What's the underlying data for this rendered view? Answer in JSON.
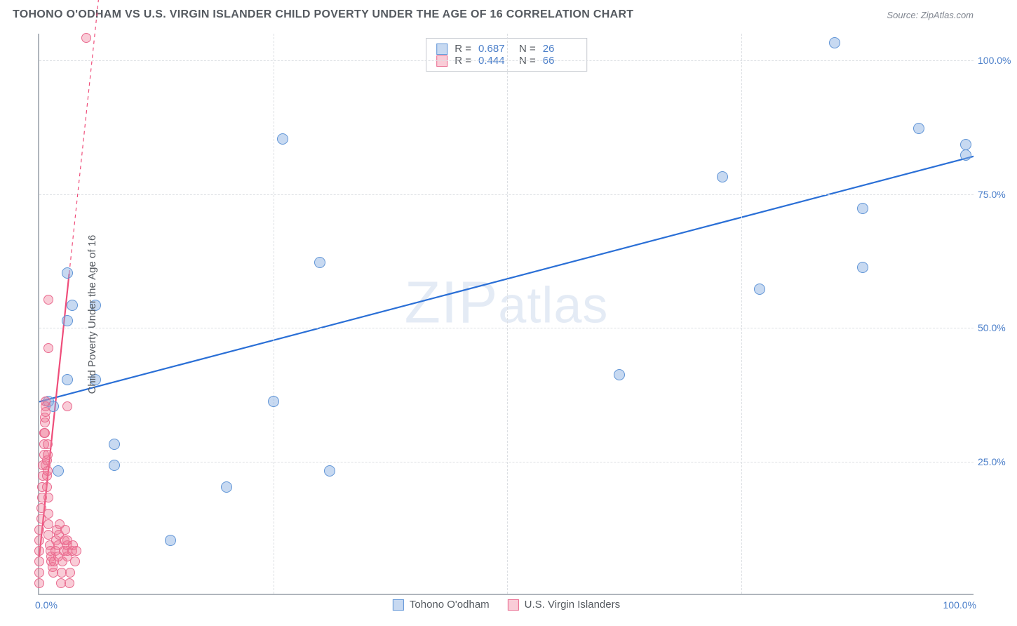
{
  "header": {
    "title": "TOHONO O'ODHAM VS U.S. VIRGIN ISLANDER CHILD POVERTY UNDER THE AGE OF 16 CORRELATION CHART",
    "source": "Source: ZipAtlas.com"
  },
  "chart": {
    "type": "scatter",
    "ylabel": "Child Poverty Under the Age of 16",
    "xlim": [
      0,
      100
    ],
    "ylim": [
      0,
      105
    ],
    "x_ticks": {
      "min_label": "0.0%",
      "max_label": "100.0%"
    },
    "y_ticks": [
      {
        "value": 25,
        "label": "25.0%"
      },
      {
        "value": 50,
        "label": "50.0%"
      },
      {
        "value": 75,
        "label": "75.0%"
      },
      {
        "value": 100,
        "label": "100.0%"
      }
    ],
    "x_gridlines": [
      25,
      50,
      75
    ],
    "background_color": "#ffffff",
    "grid_color": "#dcdfe3",
    "axis_color": "#b0b6bd",
    "series": [
      {
        "name": "Tohono O'odham",
        "color_fill": "rgba(130,170,225,0.45)",
        "color_stroke": "#5f94d6",
        "marker_radius": 8,
        "trend": {
          "x1": 0,
          "y1": 36,
          "x2": 100,
          "y2": 82,
          "dash_x1": 100,
          "dash_y1": 82,
          "dash_x2": 100,
          "dash_y2": 82,
          "color": "#2a6fd6",
          "width": 2.2
        },
        "points": [
          [
            1,
            36
          ],
          [
            1.5,
            35
          ],
          [
            2,
            23
          ],
          [
            3,
            40
          ],
          [
            3,
            51
          ],
          [
            3.5,
            54
          ],
          [
            3,
            60
          ],
          [
            6,
            40
          ],
          [
            6,
            54
          ],
          [
            8,
            28
          ],
          [
            8,
            24
          ],
          [
            14,
            10
          ],
          [
            20,
            20
          ],
          [
            25,
            36
          ],
          [
            26,
            85
          ],
          [
            30,
            62
          ],
          [
            31,
            23
          ],
          [
            62,
            41
          ],
          [
            73,
            78
          ],
          [
            77,
            57
          ],
          [
            85,
            103
          ],
          [
            88,
            61
          ],
          [
            88,
            72
          ],
          [
            94,
            87
          ],
          [
            99,
            84
          ],
          [
            99,
            82
          ]
        ]
      },
      {
        "name": "U.S. Virgin Islanders",
        "color_fill": "rgba(240,120,150,0.38)",
        "color_stroke": "#e96a8f",
        "marker_radius": 7,
        "trend": {
          "x1": 0,
          "y1": 7,
          "x2": 3.2,
          "y2": 60,
          "dash_x1": 3.2,
          "dash_y1": 60,
          "dash_x2": 9,
          "dash_y2": 155,
          "color": "#ef4d7a",
          "width": 2.2
        },
        "points": [
          [
            0,
            2
          ],
          [
            0,
            4
          ],
          [
            0,
            6
          ],
          [
            0,
            8
          ],
          [
            0,
            10
          ],
          [
            0,
            12
          ],
          [
            0.2,
            14
          ],
          [
            0.2,
            16
          ],
          [
            0.3,
            18
          ],
          [
            0.3,
            20
          ],
          [
            0.4,
            22
          ],
          [
            0.4,
            24
          ],
          [
            0.5,
            26
          ],
          [
            0.5,
            28
          ],
          [
            0.5,
            30
          ],
          [
            0.6,
            30
          ],
          [
            0.6,
            32
          ],
          [
            0.6,
            33
          ],
          [
            0.7,
            34
          ],
          [
            0.7,
            35
          ],
          [
            0.7,
            36
          ],
          [
            0.7,
            24
          ],
          [
            0.8,
            25
          ],
          [
            0.8,
            20
          ],
          [
            0.8,
            22
          ],
          [
            0.9,
            23
          ],
          [
            0.9,
            26
          ],
          [
            0.9,
            28
          ],
          [
            1,
            18
          ],
          [
            1,
            15
          ],
          [
            1,
            13
          ],
          [
            1,
            11
          ],
          [
            1.1,
            9
          ],
          [
            1.2,
            8
          ],
          [
            1.3,
            7
          ],
          [
            1.3,
            6
          ],
          [
            1.4,
            5
          ],
          [
            1.5,
            4
          ],
          [
            1.6,
            6
          ],
          [
            1.7,
            8
          ],
          [
            1.8,
            10
          ],
          [
            1.9,
            12
          ],
          [
            2,
            7
          ],
          [
            2,
            9
          ],
          [
            2.1,
            11
          ],
          [
            2.2,
            13
          ],
          [
            2.3,
            2
          ],
          [
            2.4,
            4
          ],
          [
            2.5,
            6
          ],
          [
            2.6,
            8
          ],
          [
            2.7,
            10
          ],
          [
            2.8,
            12
          ],
          [
            3,
            7
          ],
          [
            3,
            8
          ],
          [
            3,
            9
          ],
          [
            3,
            10
          ],
          [
            3.2,
            2
          ],
          [
            3.3,
            4
          ],
          [
            3.5,
            8
          ],
          [
            3.6,
            9
          ],
          [
            3.8,
            6
          ],
          [
            4,
            8
          ],
          [
            1,
            46
          ],
          [
            1,
            55
          ],
          [
            3,
            35
          ],
          [
            5,
            104
          ]
        ]
      }
    ],
    "stats_legend": [
      {
        "series": 0,
        "R_label": "R =",
        "R": "0.687",
        "N_label": "N =",
        "N": "26"
      },
      {
        "series": 1,
        "R_label": "R =",
        "R": "0.444",
        "N_label": "N =",
        "N": "66"
      }
    ],
    "bottom_legend": [
      {
        "series": 0,
        "label": "Tohono O'odham"
      },
      {
        "series": 1,
        "label": "U.S. Virgin Islanders"
      }
    ],
    "watermark": {
      "prefix": "ZIP",
      "suffix": "atlas"
    }
  }
}
